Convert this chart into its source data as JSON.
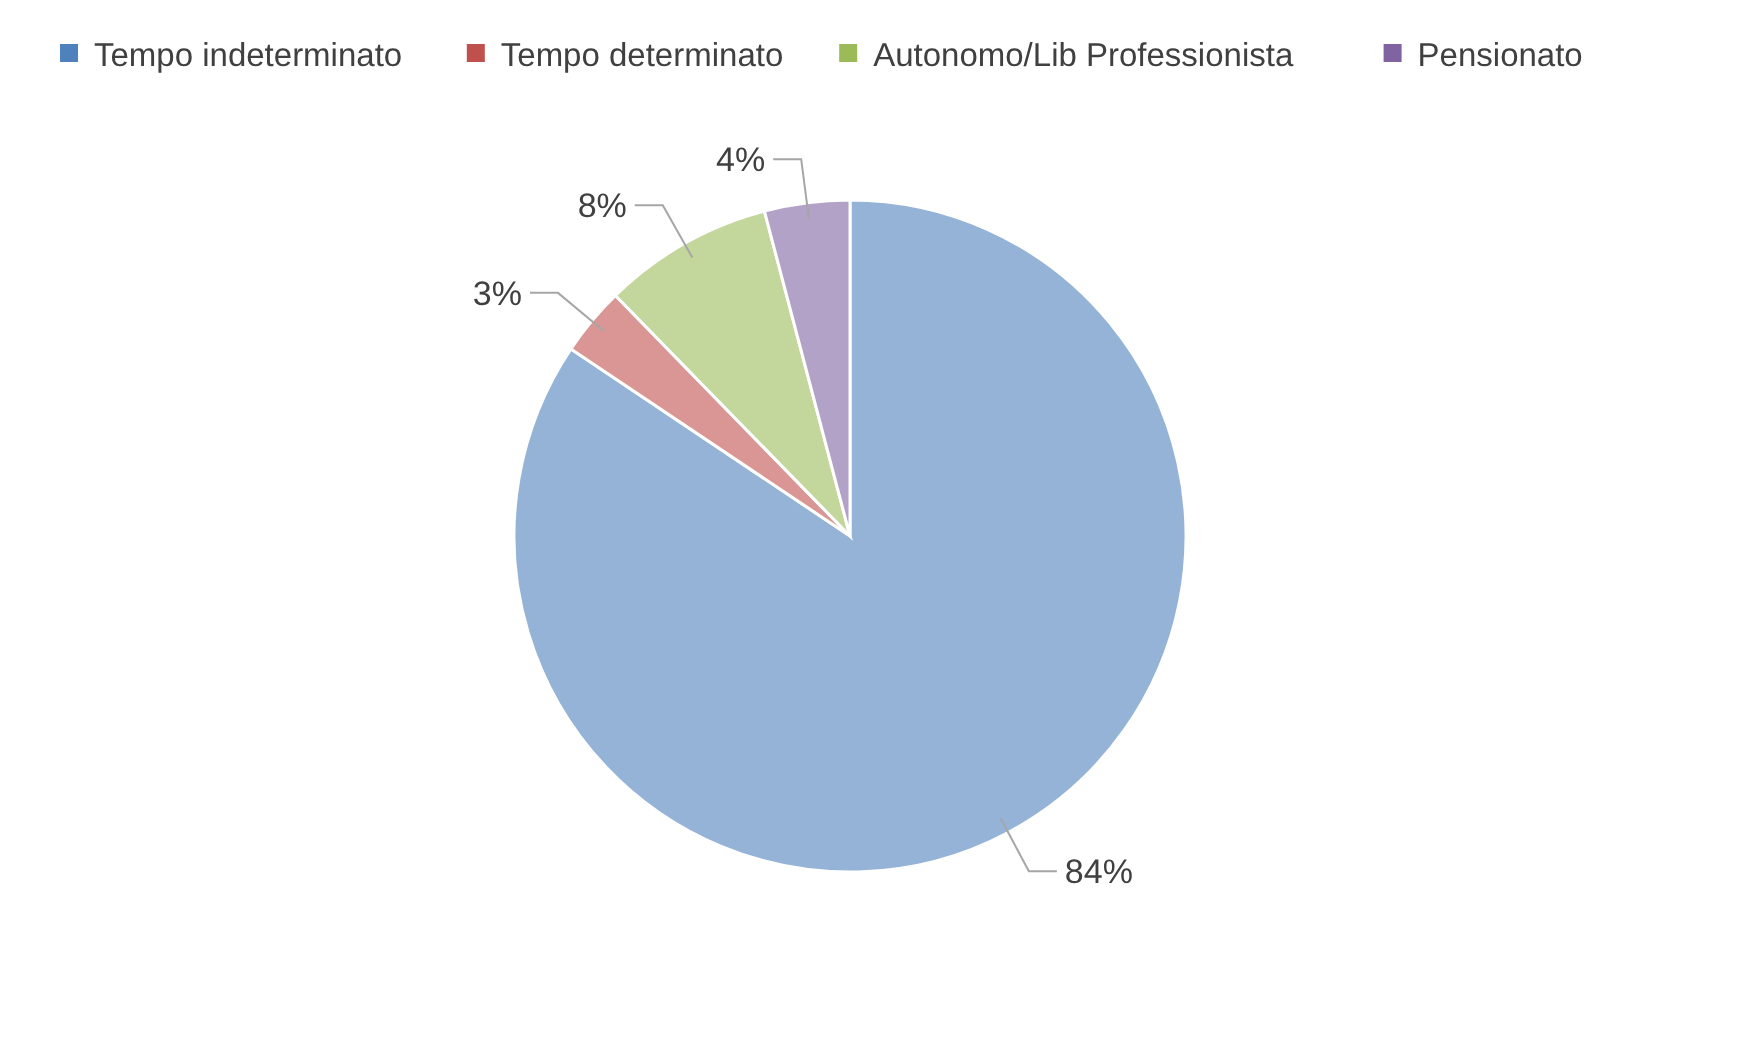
{
  "chart_data": {
    "type": "pie",
    "categories": [
      "Tempo indeterminato",
      "Tempo determinato",
      "Autonomo/Lib Professionista",
      "Pensionato"
    ],
    "values": [
      84.4,
      3.3,
      8.2,
      4.1
    ],
    "value_labels": [
      "84%",
      "3%",
      "8%",
      "4%"
    ],
    "colors": [
      "#4f81bd",
      "#c0504d",
      "#9bbb59",
      "#8064a2"
    ],
    "legend": "top"
  }
}
